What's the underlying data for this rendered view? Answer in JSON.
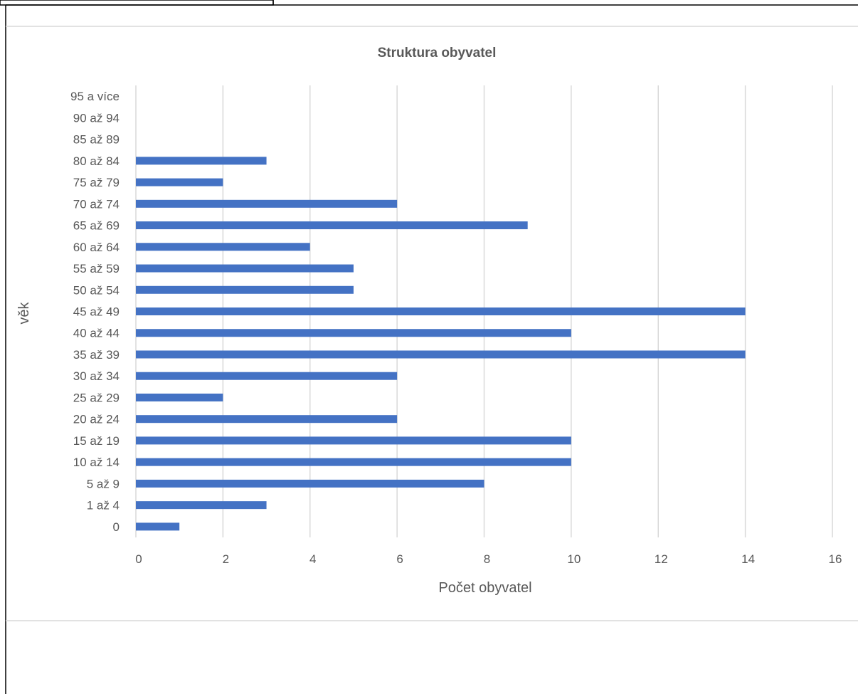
{
  "chart_data": {
    "type": "bar",
    "orientation": "horizontal",
    "title": "Struktura obyvatel",
    "xlabel": "Počet obyvatel",
    "ylabel": "věk",
    "categories": [
      "0",
      "1 až 4",
      "5 až 9",
      "10 až 14",
      "15 až 19",
      "20 až 24",
      "25 až 29",
      "30 až 34",
      "35 až 39",
      "40 až 44",
      "45 až 49",
      "50 až 54",
      "55 až 59",
      "60 až 64",
      "65 až 69",
      "70 až 74",
      "75 až 79",
      "80 až 84",
      "85 až 89",
      "90 až 94",
      "95 a více"
    ],
    "values": [
      1,
      3,
      8,
      10,
      10,
      6,
      2,
      6,
      14,
      10,
      14,
      5,
      5,
      4,
      9,
      6,
      2,
      3,
      0,
      0,
      0
    ],
    "xlim": [
      0,
      16
    ],
    "xticks": [
      0,
      2,
      4,
      6,
      8,
      10,
      12,
      14,
      16
    ],
    "grid": "vertical",
    "bar_color": "#4472C4",
    "grid_color": "#D9D9D9",
    "text_color": "#595959"
  }
}
